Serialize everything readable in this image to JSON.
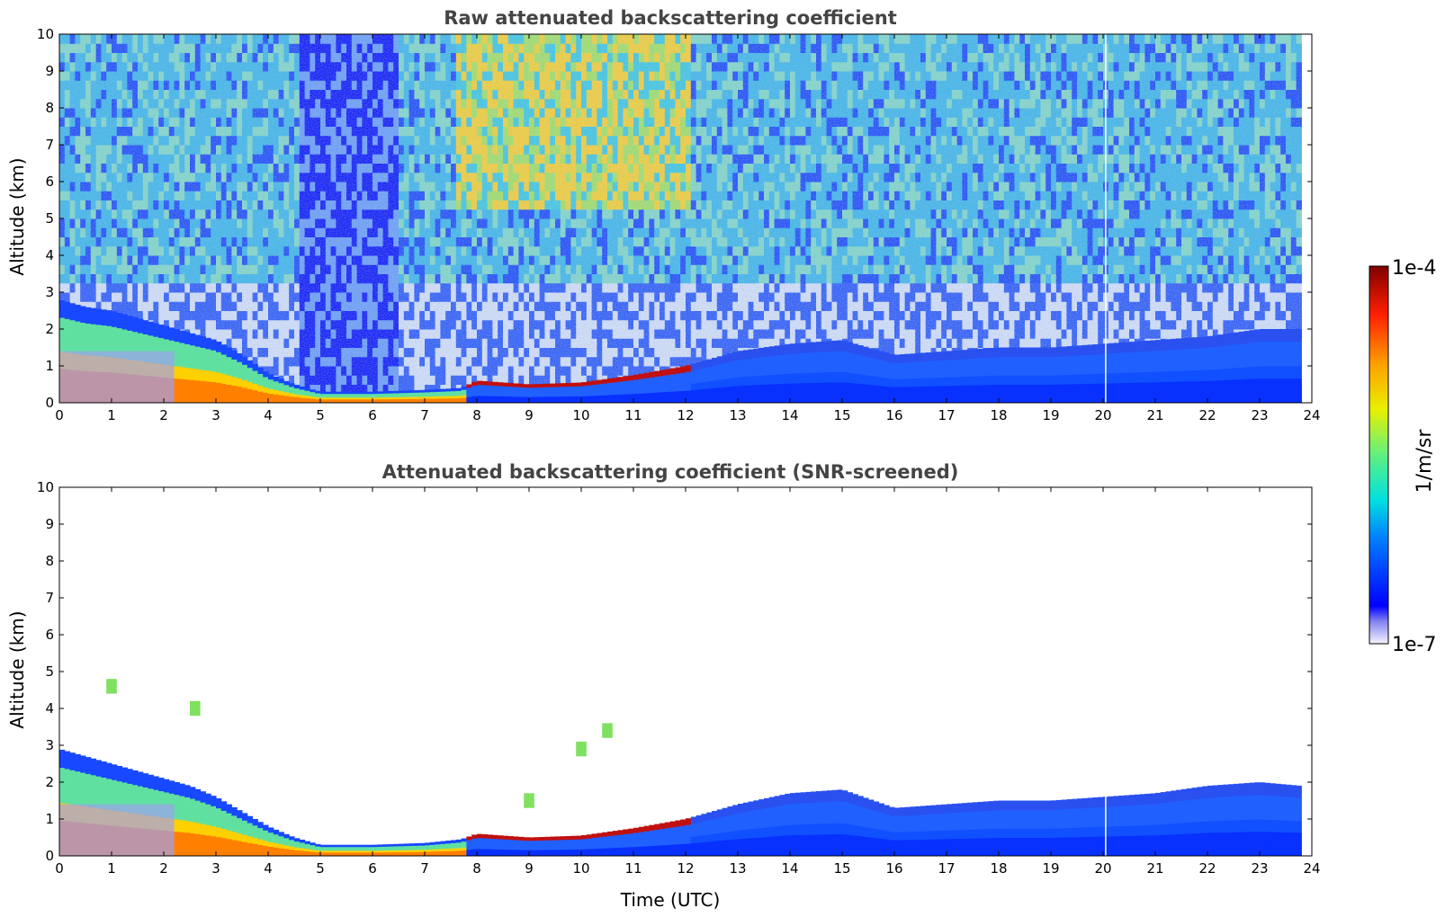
{
  "chart_data": [
    {
      "type": "heatmap",
      "title": "Raw attenuated backscattering coefficient",
      "xlabel": "",
      "ylabel": "Altitude (km)",
      "xlim": [
        0,
        24
      ],
      "ylim": [
        0,
        10
      ],
      "x_ticks": [
        "0",
        "1",
        "2",
        "3",
        "4",
        "5",
        "6",
        "7",
        "8",
        "9",
        "10",
        "11",
        "12",
        "13",
        "14",
        "15",
        "16",
        "17",
        "18",
        "19",
        "20",
        "21",
        "22",
        "23",
        "24"
      ],
      "y_ticks": [
        "0",
        "1",
        "2",
        "3",
        "4",
        "5",
        "6",
        "7",
        "8",
        "9",
        "10"
      ],
      "data_end_time": 23.8,
      "gap_time": 20.05,
      "features": {
        "boundary_layer_top_km": [
          [
            0,
            2.8
          ],
          [
            0.5,
            2.6
          ],
          [
            1,
            2.5
          ],
          [
            1.5,
            2.3
          ],
          [
            2,
            2.1
          ],
          [
            2.5,
            1.9
          ],
          [
            3,
            1.7
          ],
          [
            3.5,
            1.3
          ],
          [
            4,
            0.8
          ],
          [
            4.5,
            0.5
          ],
          [
            5,
            0.3
          ],
          [
            6,
            0.3
          ],
          [
            7,
            0.35
          ],
          [
            7.7,
            0.4
          ],
          [
            8,
            0.6
          ],
          [
            9,
            0.5
          ],
          [
            10,
            0.55
          ],
          [
            11,
            0.75
          ],
          [
            12,
            1.0
          ],
          [
            13,
            1.4
          ],
          [
            14,
            1.6
          ],
          [
            15,
            1.7
          ],
          [
            16,
            1.3
          ],
          [
            17,
            1.4
          ],
          [
            18,
            1.5
          ],
          [
            19,
            1.5
          ],
          [
            20,
            1.6
          ],
          [
            21,
            1.7
          ],
          [
            22,
            1.8
          ],
          [
            23,
            2.0
          ],
          [
            23.8,
            2.0
          ]
        ],
        "signal_level_above_bl": "noisy, high at 8–11 h, low at 4.5–6.5 h"
      }
    },
    {
      "type": "heatmap",
      "title": "Attenuated backscattering coefficient (SNR-screened)",
      "xlabel": "Time (UTC)",
      "ylabel": "Altitude (km)",
      "xlim": [
        0,
        24
      ],
      "ylim": [
        0,
        10
      ],
      "x_ticks": [
        "0",
        "1",
        "2",
        "3",
        "4",
        "5",
        "6",
        "7",
        "8",
        "9",
        "10",
        "11",
        "12",
        "13",
        "14",
        "15",
        "16",
        "17",
        "18",
        "19",
        "20",
        "21",
        "22",
        "23",
        "24"
      ],
      "y_ticks": [
        "0",
        "1",
        "2",
        "3",
        "4",
        "5",
        "6",
        "7",
        "8",
        "9",
        "10"
      ],
      "data_end_time": 23.8,
      "gap_time": 20.05,
      "features": {
        "boundary_layer_top_km": [
          [
            0,
            2.9
          ],
          [
            0.5,
            2.7
          ],
          [
            1,
            2.5
          ],
          [
            1.5,
            2.3
          ],
          [
            2,
            2.1
          ],
          [
            2.5,
            1.9
          ],
          [
            3,
            1.6
          ],
          [
            3.5,
            1.2
          ],
          [
            4,
            0.8
          ],
          [
            4.5,
            0.5
          ],
          [
            5,
            0.3
          ],
          [
            6,
            0.3
          ],
          [
            7,
            0.35
          ],
          [
            7.7,
            0.45
          ],
          [
            8,
            0.6
          ],
          [
            9,
            0.5
          ],
          [
            10,
            0.55
          ],
          [
            11,
            0.75
          ],
          [
            12,
            1.0
          ],
          [
            13,
            1.4
          ],
          [
            14,
            1.7
          ],
          [
            15,
            1.8
          ],
          [
            16,
            1.3
          ],
          [
            17,
            1.4
          ],
          [
            18,
            1.5
          ],
          [
            19,
            1.5
          ],
          [
            20,
            1.6
          ],
          [
            21,
            1.7
          ],
          [
            22,
            1.9
          ],
          [
            23,
            2.0
          ],
          [
            23.8,
            1.9
          ]
        ],
        "isolated_clouds": [
          [
            1.0,
            4.6
          ],
          [
            2.6,
            4.0
          ],
          [
            10.5,
            3.4
          ],
          [
            10.0,
            2.9
          ],
          [
            9.0,
            1.5
          ]
        ]
      }
    }
  ],
  "colorbar": {
    "label": "1/m/sr",
    "max_label": "1e-4",
    "min_label": "1e-7",
    "colormap": "jet",
    "range": [
      1e-07,
      0.0001
    ],
    "scale": "log"
  }
}
